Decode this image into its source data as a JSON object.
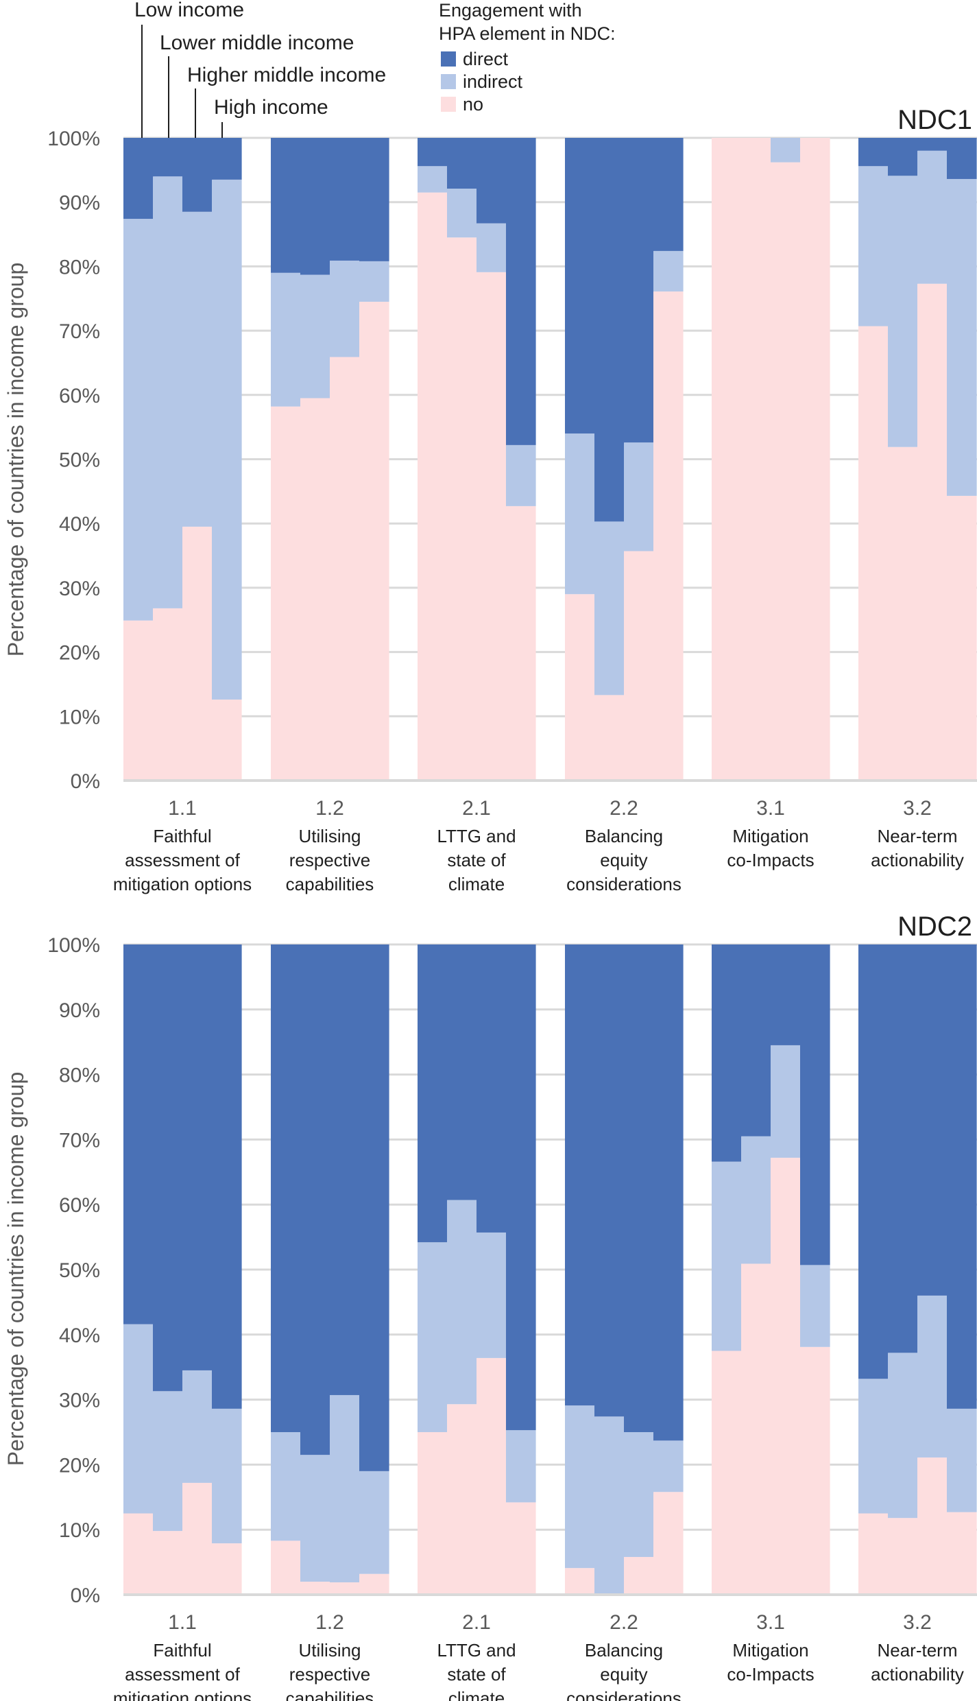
{
  "chart_data": {
    "type": "bar",
    "subtype": "stacked-100-percent",
    "ylabel": "Percentage of countries in income group",
    "ylim": [
      0,
      100
    ],
    "y_ticks": [
      "0%",
      "10%",
      "20%",
      "30%",
      "40%",
      "50%",
      "60%",
      "70%",
      "80%",
      "90%",
      "100%"
    ],
    "grid": true,
    "income_groups": [
      "Low income",
      "Lower middle income",
      "Higher middle income",
      "High income"
    ],
    "legend": {
      "title_line1": "Engagement with",
      "title_line2": "HPA element in NDC:",
      "placement": "top-center",
      "entries": [
        {
          "key": "direct",
          "label": "direct",
          "color": "#4A71B6"
        },
        {
          "key": "indirect",
          "label": "indirect",
          "color": "#B4C7E7"
        },
        {
          "key": "no",
          "label": "no",
          "color": "#FDDEDF"
        }
      ]
    },
    "categories": [
      {
        "code": "1.1",
        "lines": [
          "Faithful",
          "assessment of",
          "mitigation options"
        ]
      },
      {
        "code": "1.2",
        "lines": [
          "Utilising",
          "respective",
          "capabilities"
        ]
      },
      {
        "code": "2.1",
        "lines": [
          "LTTG and",
          "state of",
          "climate"
        ]
      },
      {
        "code": "2.2",
        "lines": [
          "Balancing",
          "equity",
          "considerations"
        ]
      },
      {
        "code": "3.1",
        "lines": [
          "Mitigation",
          "co-Impacts"
        ]
      },
      {
        "code": "3.2",
        "lines": [
          "Near-term",
          "actionability"
        ]
      }
    ],
    "panels": [
      {
        "title": "NDC1",
        "note": "values per category listed by income group [Low, Lower middle, Higher middle, High]; no + indirect + direct = 100",
        "series": [
          {
            "name": "no",
            "values": [
              [
                24.9,
                26.8,
                39.5,
                12.6
              ],
              [
                58.2,
                59.5,
                65.9,
                74.5
              ],
              [
                91.5,
                84.5,
                79.1,
                42.7
              ],
              [
                29.0,
                13.3,
                35.7,
                76.1
              ],
              [
                100.0,
                100.0,
                96.2,
                100.0
              ],
              [
                70.7,
                51.9,
                77.3,
                44.3
              ]
            ]
          },
          {
            "name": "indirect",
            "values": [
              [
                62.5,
                67.2,
                49.0,
                80.9
              ],
              [
                20.8,
                19.2,
                15.0,
                6.3
              ],
              [
                4.1,
                7.6,
                7.6,
                9.5
              ],
              [
                25.0,
                27.0,
                16.9,
                6.3
              ],
              [
                0.0,
                0.0,
                3.8,
                0.0
              ],
              [
                24.9,
                42.2,
                20.7,
                49.3
              ]
            ]
          },
          {
            "name": "direct",
            "values": [
              [
                12.6,
                6.0,
                11.5,
                6.5
              ],
              [
                21.0,
                21.3,
                19.1,
                19.2
              ],
              [
                4.4,
                7.9,
                13.3,
                47.8
              ],
              [
                46.0,
                59.7,
                47.4,
                17.6
              ],
              [
                0.0,
                0.0,
                0.0,
                0.0
              ],
              [
                4.4,
                5.9,
                2.0,
                6.4
              ]
            ]
          }
        ]
      },
      {
        "title": "NDC2",
        "note": "values per category listed by income group [Low, Lower middle, Higher middle, High]; no + indirect + direct = 100",
        "series": [
          {
            "name": "no",
            "values": [
              [
                12.5,
                9.8,
                17.2,
                7.9
              ],
              [
                8.3,
                2.0,
                1.9,
                3.2
              ],
              [
                25.0,
                29.3,
                36.4,
                14.2
              ],
              [
                4.1,
                0.0,
                5.8,
                15.8
              ],
              [
                37.5,
                50.9,
                67.2,
                38.1
              ],
              [
                12.5,
                11.8,
                21.1,
                12.7
              ]
            ]
          },
          {
            "name": "indirect",
            "values": [
              [
                29.1,
                21.5,
                17.3,
                20.7
              ],
              [
                16.7,
                19.5,
                28.8,
                15.8
              ],
              [
                29.2,
                31.4,
                19.3,
                11.1
              ],
              [
                25.0,
                27.4,
                19.2,
                7.9
              ],
              [
                29.1,
                19.6,
                17.3,
                12.6
              ],
              [
                20.7,
                25.4,
                24.9,
                15.9
              ]
            ]
          },
          {
            "name": "direct",
            "values": [
              [
                58.4,
                68.7,
                65.5,
                71.4
              ],
              [
                75.0,
                78.5,
                69.3,
                81.0
              ],
              [
                45.8,
                39.3,
                44.3,
                74.7
              ],
              [
                70.9,
                72.6,
                75.0,
                76.3
              ],
              [
                33.4,
                29.5,
                15.5,
                49.3
              ],
              [
                66.8,
                62.8,
                54.0,
                71.4
              ]
            ]
          }
        ]
      }
    ]
  }
}
